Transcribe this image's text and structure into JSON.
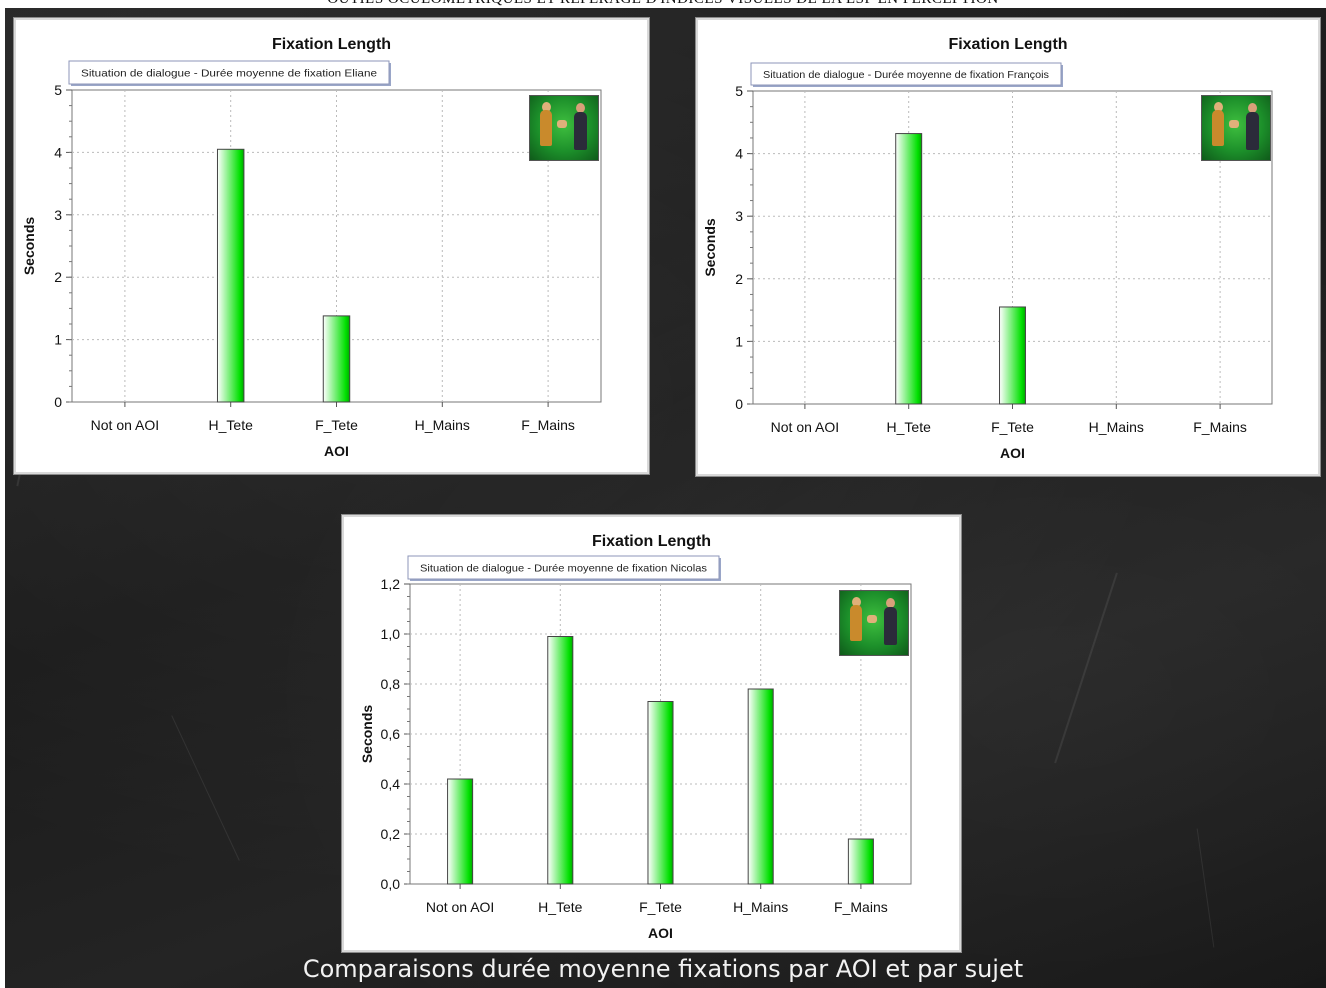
{
  "header": "OUTILS OCULOMÉTRIQUES ET REPÉRAGE D'INDICES VISUELS DE LA LSF EN PERCEPTION",
  "caption": "Comparaisons durée moyenne fixations par AOI et par sujet",
  "colors": {
    "bar_dark": "#00e000",
    "bar_light": "#ffffff",
    "board": "#1e1e1e"
  },
  "chart_data": [
    {
      "type": "bar",
      "title": "Fixation Length",
      "subtitle": "Situation de dialogue - Durée moyenne de fixation Eliane",
      "xlabel": "AOI",
      "ylabel": "Seconds",
      "categories": [
        "Not on AOI",
        "H_Tete",
        "F_Tete",
        "H_Mains",
        "F_Mains"
      ],
      "values": [
        0,
        4.05,
        1.38,
        0,
        0
      ],
      "ylim": [
        0,
        5
      ],
      "yticks": [
        "0",
        "1",
        "2",
        "3",
        "4",
        "5"
      ],
      "grid": true,
      "thumbnail_icon": "video-thumbnail-icon"
    },
    {
      "type": "bar",
      "title": "Fixation Length",
      "subtitle": "Situation de dialogue - Durée moyenne de fixation François",
      "xlabel": "AOI",
      "ylabel": "Seconds",
      "categories": [
        "Not on AOI",
        "H_Tete",
        "F_Tete",
        "H_Mains",
        "F_Mains"
      ],
      "values": [
        0,
        4.32,
        1.55,
        0,
        0
      ],
      "ylim": [
        0,
        5
      ],
      "yticks": [
        "0",
        "1",
        "2",
        "3",
        "4",
        "5"
      ],
      "grid": true,
      "thumbnail_icon": "video-thumbnail-icon"
    },
    {
      "type": "bar",
      "title": "Fixation Length",
      "subtitle": "Situation de dialogue - Durée moyenne de fixation Nicolas",
      "xlabel": "AOI",
      "ylabel": "Seconds",
      "categories": [
        "Not on AOI",
        "H_Tete",
        "F_Tete",
        "H_Mains",
        "F_Mains"
      ],
      "values": [
        0.42,
        0.99,
        0.73,
        0.78,
        0.18
      ],
      "ylim": [
        0,
        1.2
      ],
      "yticks": [
        "0,0",
        "0,2",
        "0,4",
        "0,6",
        "0,8",
        "1,0",
        "1,2"
      ],
      "grid": true,
      "thumbnail_icon": "video-thumbnail-icon"
    }
  ]
}
